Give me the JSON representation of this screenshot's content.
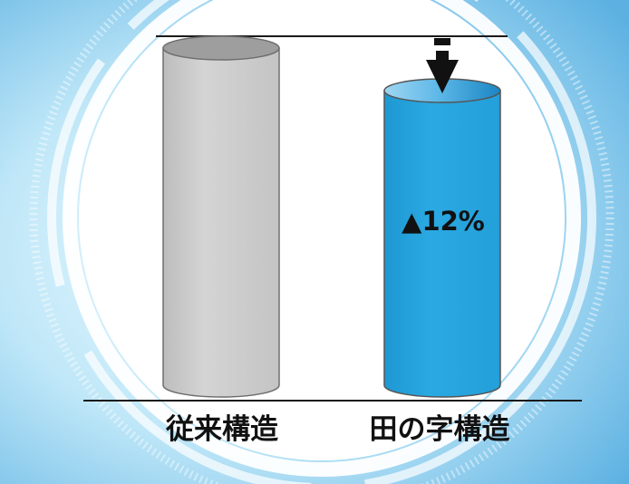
{
  "labels": {
    "conventional": "従来構造",
    "tanoji": "田の字構造"
  },
  "reduction": {
    "text": "▲12%",
    "percent": 12
  },
  "colors": {
    "conventional_cylinder": "#cacaca",
    "tanoji_cylinder": "#29a8e0",
    "background_light": "#dff5fd",
    "background_dark": "#4aa7dc",
    "ring": "#ffffff"
  },
  "icons": {
    "arrow": "down-arrow-icon"
  }
}
